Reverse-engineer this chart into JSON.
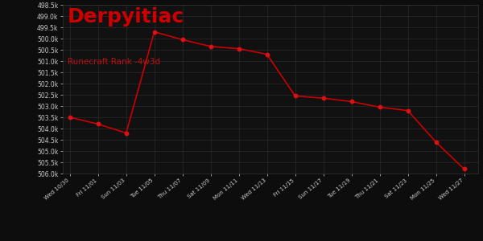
{
  "title": "Derpyitiac",
  "subtitle": "Runecraft Rank -4w3d",
  "background_color": "#0d0d0d",
  "plot_bg_color": "#111111",
  "grid_color": "#2a2a2a",
  "line_color": "#cc0000",
  "marker_color": "#dd1111",
  "text_color": "#cccccc",
  "title_color": "#cc0000",
  "subtitle_color": "#bb1111",
  "x_tick_labels": [
    "Wed 10/30",
    "Fri 11/01",
    "Sun 11/03",
    "Tue 11/05",
    "Thu 11/07",
    "Sat 11/09",
    "Mon 11/11",
    "Wed 11/13",
    "Fri 11/15",
    "Sun 11/17",
    "Tue 11/19",
    "Thu 11/21",
    "Sat 11/23",
    "Mon 11/25",
    "Wed 11/27"
  ],
  "x_values": [
    0,
    2,
    4,
    6,
    8,
    10,
    12,
    14,
    16,
    18,
    20,
    22,
    24,
    26,
    28
  ],
  "y_values": [
    503500,
    503800,
    504200,
    499700,
    500050,
    500350,
    500450,
    500700,
    502550,
    502650,
    502800,
    503050,
    503200,
    504600,
    505800
  ],
  "ylim_min": 498500,
  "ylim_max": 506000,
  "ytick_values": [
    498500,
    499000,
    499500,
    500000,
    500500,
    501000,
    501500,
    502000,
    502500,
    503000,
    503500,
    504000,
    504500,
    505000,
    505500,
    506000
  ],
  "ytick_labels": [
    "498.5k",
    "499.0k",
    "499.5k",
    "500.0k",
    "500.5k",
    "501.0k",
    "501.5k",
    "502.0k",
    "502.5k",
    "503.0k",
    "503.5k",
    "504.0k",
    "504.5k",
    "505.0k",
    "505.5k",
    "506.0k"
  ]
}
